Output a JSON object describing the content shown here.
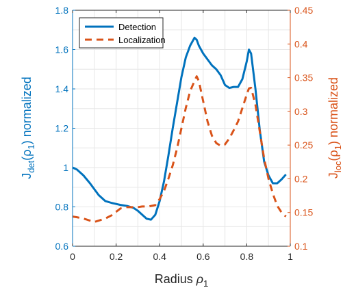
{
  "chart_data": {
    "type": "line",
    "x_axis": {
      "label_main": "Radius ",
      "label_symbol": "ρ",
      "label_sub": "1",
      "lim": [
        0,
        1
      ],
      "ticks": [
        0,
        0.2,
        0.4,
        0.6,
        0.8,
        1
      ],
      "tick_labels": [
        "0",
        "0.2",
        "0.4",
        "0.6",
        "0.8",
        "1"
      ]
    },
    "y_left": {
      "label_main": "J",
      "label_sub": "det",
      "label_rest": "(ρ",
      "label_sub2": "1",
      "label_end": ") normalized",
      "lim": [
        0.6,
        1.8
      ],
      "ticks": [
        0.6,
        0.8,
        1,
        1.2,
        1.4,
        1.6,
        1.8
      ],
      "tick_labels": [
        "0.6",
        "0.8",
        "1",
        "1.2",
        "1.4",
        "1.6",
        "1.8"
      ],
      "color": "#0072BD"
    },
    "y_right": {
      "label_main": "J",
      "label_sub": "loc",
      "label_rest": "(ρ",
      "label_sub2": "1",
      "label_end": ") normalized",
      "lim": [
        0.1,
        0.45
      ],
      "ticks": [
        0.1,
        0.15,
        0.2,
        0.25,
        0.3,
        0.35,
        0.4,
        0.45
      ],
      "tick_labels": [
        "0.1",
        "0.15",
        "0.2",
        "0.25",
        "0.3",
        "0.35",
        "0.4",
        "0.45"
      ],
      "color": "#D95319"
    },
    "grid": true,
    "legend_position": "top-left",
    "series": [
      {
        "name": "Detection",
        "axis": "left",
        "style": "solid",
        "color": "#0072BD",
        "x": [
          0,
          0.02,
          0.05,
          0.08,
          0.1,
          0.12,
          0.15,
          0.18,
          0.2,
          0.22,
          0.25,
          0.28,
          0.3,
          0.32,
          0.34,
          0.36,
          0.38,
          0.4,
          0.42,
          0.44,
          0.46,
          0.48,
          0.5,
          0.52,
          0.54,
          0.56,
          0.57,
          0.58,
          0.6,
          0.62,
          0.64,
          0.66,
          0.68,
          0.7,
          0.72,
          0.74,
          0.76,
          0.78,
          0.8,
          0.81,
          0.82,
          0.84,
          0.86,
          0.88,
          0.9,
          0.92,
          0.94,
          0.96,
          0.98
        ],
        "y": [
          1.0,
          0.99,
          0.96,
          0.92,
          0.89,
          0.86,
          0.83,
          0.82,
          0.815,
          0.81,
          0.805,
          0.795,
          0.78,
          0.76,
          0.74,
          0.735,
          0.76,
          0.83,
          0.93,
          1.06,
          1.2,
          1.33,
          1.46,
          1.56,
          1.62,
          1.66,
          1.65,
          1.62,
          1.58,
          1.55,
          1.52,
          1.5,
          1.47,
          1.42,
          1.405,
          1.41,
          1.41,
          1.45,
          1.54,
          1.6,
          1.58,
          1.4,
          1.19,
          1.03,
          0.96,
          0.92,
          0.92,
          0.94,
          0.965
        ]
      },
      {
        "name": "Localization",
        "axis": "right",
        "style": "dashed",
        "color": "#D95319",
        "x": [
          0,
          0.02,
          0.05,
          0.08,
          0.1,
          0.12,
          0.15,
          0.18,
          0.2,
          0.22,
          0.25,
          0.28,
          0.3,
          0.32,
          0.35,
          0.38,
          0.4,
          0.42,
          0.44,
          0.46,
          0.48,
          0.5,
          0.52,
          0.54,
          0.56,
          0.57,
          0.58,
          0.6,
          0.62,
          0.64,
          0.66,
          0.68,
          0.7,
          0.72,
          0.74,
          0.76,
          0.78,
          0.8,
          0.81,
          0.82,
          0.84,
          0.86,
          0.88,
          0.9,
          0.92,
          0.94,
          0.96,
          0.98
        ],
        "y": [
          0.144,
          0.143,
          0.141,
          0.138,
          0.136,
          0.138,
          0.141,
          0.146,
          0.151,
          0.156,
          0.158,
          0.158,
          0.158,
          0.159,
          0.159,
          0.161,
          0.17,
          0.182,
          0.2,
          0.22,
          0.245,
          0.275,
          0.305,
          0.33,
          0.345,
          0.352,
          0.345,
          0.315,
          0.285,
          0.264,
          0.253,
          0.249,
          0.251,
          0.26,
          0.272,
          0.285,
          0.305,
          0.325,
          0.334,
          0.335,
          0.31,
          0.27,
          0.23,
          0.2,
          0.178,
          0.16,
          0.15,
          0.144
        ]
      }
    ]
  }
}
